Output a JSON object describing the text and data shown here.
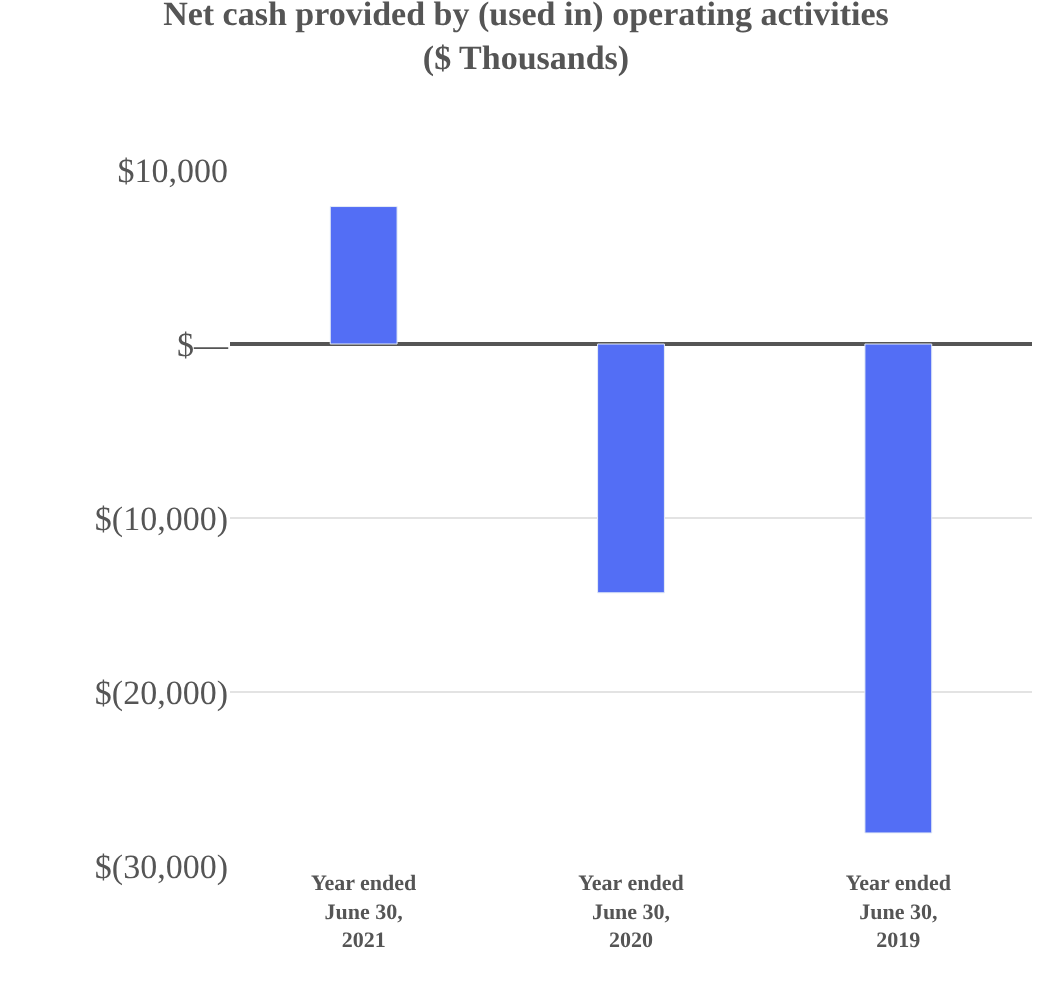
{
  "chart_data": {
    "type": "bar",
    "title": "Net cash provided by (used in) operating activities\n($ Thousands)",
    "categories": [
      "Year ended\nJune 30,\n2021",
      "Year ended\nJune 30,\n2020",
      "Year ended\nJune 30,\n2019"
    ],
    "values": [
      7900,
      -14300,
      -28100
    ],
    "color": "#536ef5",
    "ylim": [
      -30000,
      10000
    ],
    "yticks": [
      {
        "value": 10000,
        "label": "$10,000"
      },
      {
        "value": 0,
        "label": "$—"
      },
      {
        "value": -10000,
        "label": "$(10,000)"
      },
      {
        "value": -20000,
        "label": "$(20,000)"
      },
      {
        "value": -30000,
        "label": "$(30,000)"
      }
    ],
    "grid": "y"
  }
}
